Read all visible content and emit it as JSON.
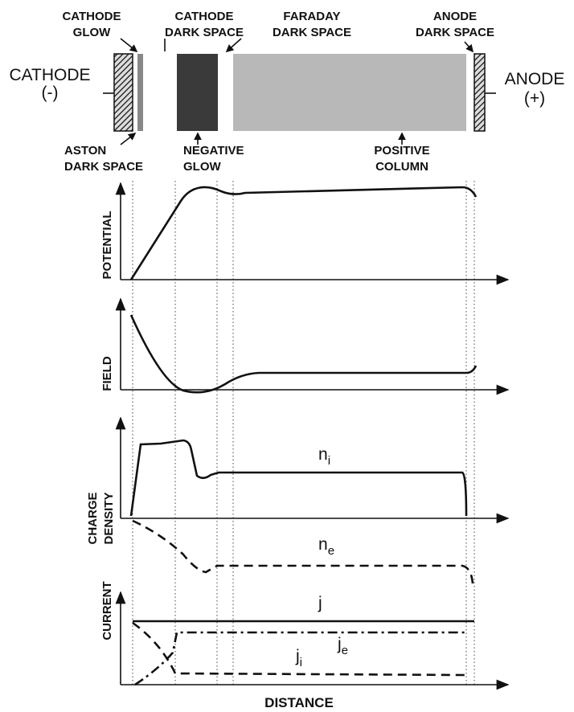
{
  "header": {
    "cathode": {
      "lines": [
        "CATHODE",
        "(-)"
      ]
    },
    "anode": {
      "lines": [
        "ANODE",
        "(+)"
      ]
    },
    "regions_top": [
      {
        "lines": [
          "CATHODE",
          "GLOW"
        ]
      },
      {
        "lines": [
          "CATHODE",
          "DARK SPACE"
        ]
      },
      {
        "lines": [
          "FARADAY",
          "DARK SPACE"
        ]
      },
      {
        "lines": [
          "ANODE",
          "DARK SPACE"
        ]
      }
    ],
    "regions_bottom": [
      {
        "lines": [
          "ASTON",
          "DARK SPACE"
        ]
      },
      {
        "lines": [
          "NEGATIVE",
          "GLOW"
        ]
      },
      {
        "lines": [
          "POSITIVE",
          "COLUMN"
        ]
      }
    ]
  },
  "plots": [
    {
      "ylabel": {
        "lines": [
          "POTENTIAL"
        ]
      }
    },
    {
      "ylabel": {
        "lines": [
          "FIELD"
        ]
      }
    },
    {
      "ylabel": {
        "lines": [
          "CHARGE",
          "DENSITY"
        ]
      },
      "curves": [
        {
          "symbol": "n",
          "subscript": "i"
        },
        {
          "symbol": "n",
          "subscript": "e"
        }
      ]
    },
    {
      "ylabel": {
        "lines": [
          "CURRENT"
        ]
      },
      "curves": [
        {
          "symbol": "j"
        },
        {
          "symbol": "j",
          "subscript": "e"
        },
        {
          "symbol": "j",
          "subscript": "i"
        }
      ]
    }
  ],
  "xlabel": "DISTANCE"
}
